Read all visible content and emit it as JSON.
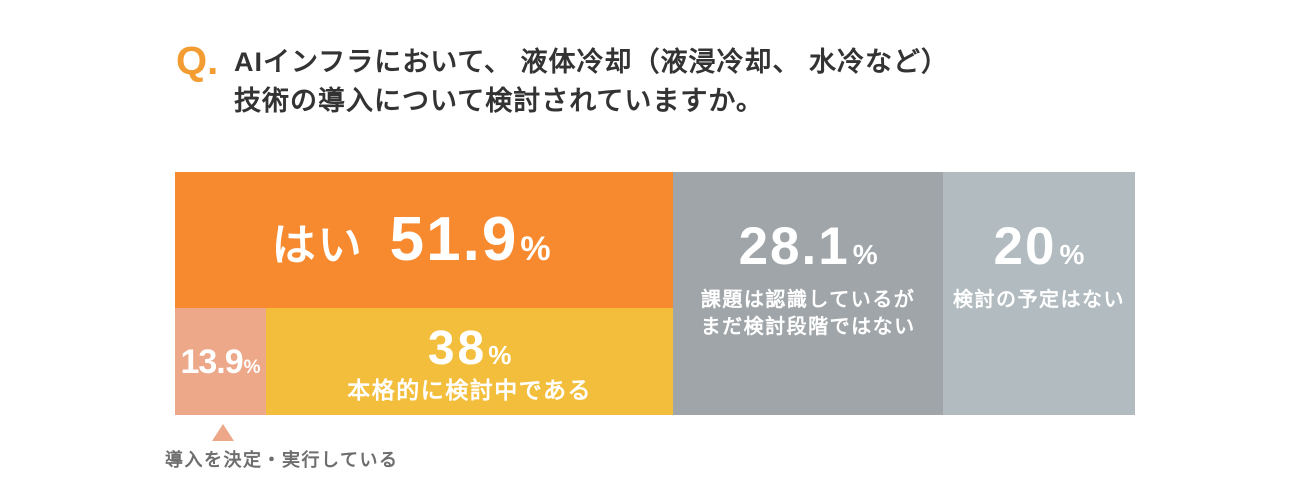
{
  "question": {
    "prefix": "Q.",
    "lines": [
      "AIインフラにおいて、 液体冷却（液浸冷却、 水冷など）",
      "技術の導入について検討されていますか。"
    ]
  },
  "colors": {
    "accent": "#F39C32",
    "question_text": "#333333",
    "note_text": "#6E6E6E",
    "label_text": "#FFFFFF"
  },
  "chart_data": {
    "type": "bar",
    "orientation": "horizontal",
    "stacked": true,
    "segments": [
      {
        "label": "はい",
        "value": 51.9,
        "unit": "%",
        "color": "#F7892F",
        "breakdown": [
          {
            "label": "導入を決定・実行している",
            "value": 13.9,
            "unit": "%",
            "color": "#ECA889"
          },
          {
            "label": "本格的に検討中である",
            "value": 38,
            "unit": "%",
            "color": "#F3BE3C"
          }
        ]
      },
      {
        "label_lines": [
          "課題は認識しているが",
          "まだ検討段階ではない"
        ],
        "value": 28.1,
        "unit": "%",
        "color": "#9FA5A8"
      },
      {
        "label": "検討の予定はない",
        "value": 20,
        "unit": "%",
        "color": "#B1BBC0"
      }
    ]
  }
}
